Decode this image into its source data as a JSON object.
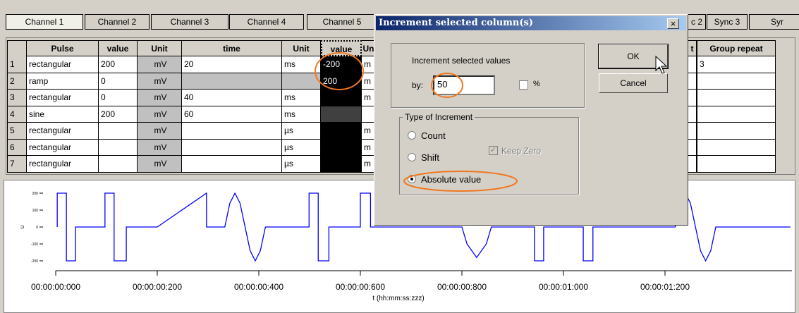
{
  "tabs": [
    "Channel 1",
    "Channel 2",
    "Channel 3",
    "Channel 4",
    "Channel 5",
    "c 2",
    "Sync 3",
    "Syr"
  ],
  "table": {
    "headers": [
      "Pulse",
      "value",
      "Unit",
      "time",
      "Unit",
      "value",
      "Un"
    ],
    "row_labels": [
      "1",
      "2",
      "3",
      "4",
      "5",
      "6",
      "7"
    ],
    "rows": [
      [
        "rectangular",
        "200",
        "mV",
        "20",
        "ms",
        "-200",
        "m"
      ],
      [
        "ramp",
        "0",
        "mV",
        null,
        null,
        "200",
        "m"
      ],
      [
        "rectangular",
        "0",
        "mV",
        "40",
        "ms",
        null,
        "m"
      ],
      [
        "sine",
        "200",
        "mV",
        "60",
        "ms",
        null,
        null
      ],
      [
        "rectangular",
        null,
        "mV",
        null,
        "µs",
        null,
        "m"
      ],
      [
        "rectangular",
        null,
        "mV",
        null,
        "µs",
        null,
        "m"
      ],
      [
        "rectangular",
        null,
        "mV",
        null,
        "µs",
        null,
        "m"
      ]
    ],
    "right_headers": [
      "t",
      "Group repeat"
    ],
    "right_rows": [
      [
        null,
        "3"
      ],
      [
        null,
        null
      ],
      [
        null,
        null
      ],
      [
        null,
        null
      ],
      [
        null,
        null
      ],
      [
        null,
        null
      ],
      [
        null,
        null
      ]
    ]
  },
  "dialog": {
    "title": "Increment selected column(s)",
    "close": "×",
    "group1": "Increment selected values",
    "by_label": "by:",
    "by_value": "50",
    "percent_label": "%",
    "percent_checked": false,
    "ok": "OK",
    "cancel": "Cancel",
    "group2": "Type of Increment",
    "options": [
      "Count",
      "Shift",
      "Absolute value"
    ],
    "selected_option": 2,
    "keep_zero": "Keep Zero",
    "keep_zero_checked": true
  },
  "chart_data": {
    "type": "line",
    "x_label": "t (hh:mm:ss:zzz)",
    "y_label": "U",
    "xlim": [
      0,
      1450
    ],
    "ylim": [
      -200,
      200
    ],
    "xticks": [
      {
        "value": 0,
        "label": "00:00:00:000"
      },
      {
        "value": 200,
        "label": "00:00:00:200"
      },
      {
        "value": 400,
        "label": "00:00:00:400"
      },
      {
        "value": 600,
        "label": "00:00:00:600"
      },
      {
        "value": 800,
        "label": "00:00:00:800"
      },
      {
        "value": 1000,
        "label": "00:00:01:000"
      },
      {
        "value": 1200,
        "label": "00:00:01:200"
      }
    ],
    "yticks": [
      200,
      100,
      0,
      -100,
      -200
    ],
    "series": [
      {
        "color": "#0000ff",
        "x": [
          3,
          3,
          21,
          21,
          39,
          39,
          97,
          97,
          115,
          115,
          139,
          139,
          200,
          297,
          297,
          333,
          343,
          353,
          363,
          373,
          383,
          393,
          403,
          413,
          499,
          499,
          517,
          517,
          538,
          538,
          600,
          600,
          620,
          620,
          800,
          810,
          829,
          848,
          858,
          943,
          943,
          961,
          961,
          1039,
          1039,
          1058,
          1058,
          1220,
          1230,
          1240,
          1250,
          1260,
          1270,
          1280,
          1290,
          1300,
          1447
        ],
        "values": [
          0,
          200,
          200,
          -200,
          -200,
          0,
          0,
          200,
          200,
          -200,
          -200,
          0,
          0,
          200,
          0,
          0,
          141,
          200,
          141,
          0,
          -141,
          -200,
          -141,
          0,
          0,
          200,
          200,
          -200,
          -200,
          0,
          0,
          200,
          200,
          0,
          0,
          -100,
          -180,
          -100,
          0,
          0,
          -200,
          -200,
          0,
          0,
          -200,
          -200,
          0,
          0,
          141,
          200,
          141,
          0,
          -141,
          -200,
          -141,
          0,
          0
        ]
      }
    ]
  }
}
